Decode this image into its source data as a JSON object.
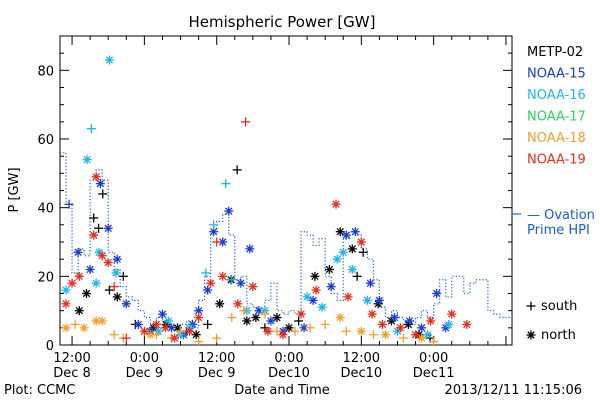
{
  "chart_data": {
    "type": "scatter",
    "title": "Hemispheric Power [GW]",
    "ylabel": "P [GW]",
    "xlabel": "Date and Time",
    "ylim": [
      0,
      90
    ],
    "xlim_hours": [
      10,
      85
    ],
    "yticks": [
      0,
      20,
      40,
      60,
      80
    ],
    "xticks": [
      {
        "x": 12,
        "top": "12:00",
        "bottom": "Dec 8"
      },
      {
        "x": 24,
        "top": "0:00",
        "bottom": "Dec 9"
      },
      {
        "x": 36,
        "top": "12:00",
        "bottom": "Dec 9"
      },
      {
        "x": 48,
        "top": "0:00",
        "bottom": "Dec10"
      },
      {
        "x": 60,
        "top": "12:00",
        "bottom": "Dec10"
      },
      {
        "x": 72,
        "top": "0:00",
        "bottom": "Dec11"
      }
    ],
    "legend": [
      {
        "name": "METP-02",
        "color": "#000000"
      },
      {
        "name": "NOAA-15",
        "color": "#1a3ccc"
      },
      {
        "name": "NOAA-16",
        "color": "#22b4e8"
      },
      {
        "name": "NOAA-17",
        "color": "#33cc66"
      },
      {
        "name": "NOAA-18",
        "color": "#f0a030"
      },
      {
        "name": "NOAA-19",
        "color": "#e03020"
      }
    ],
    "ovation_label": [
      "— Ovation",
      "Prime HPI"
    ],
    "ovation_color": "#1a5ccc",
    "marker_legend": [
      {
        "symbol": "+",
        "label": "south"
      },
      {
        "symbol": "*",
        "label": "north"
      }
    ],
    "ovation_hpi": [
      [
        10,
        56
      ],
      [
        11,
        41
      ],
      [
        12,
        21
      ],
      [
        13,
        28
      ],
      [
        14,
        26
      ],
      [
        15,
        48
      ],
      [
        16,
        51
      ],
      [
        17,
        48
      ],
      [
        18,
        27
      ],
      [
        19,
        22
      ],
      [
        20,
        17
      ],
      [
        21,
        14
      ],
      [
        22,
        13
      ],
      [
        23,
        10
      ],
      [
        24,
        8
      ],
      [
        25,
        6
      ],
      [
        26,
        8
      ],
      [
        27,
        7
      ],
      [
        28,
        6
      ],
      [
        29,
        4
      ],
      [
        30,
        6
      ],
      [
        31,
        7
      ],
      [
        32,
        5
      ],
      [
        33,
        13
      ],
      [
        34,
        20
      ],
      [
        35,
        33
      ],
      [
        36,
        36
      ],
      [
        37,
        38
      ],
      [
        38,
        32
      ],
      [
        39,
        19
      ],
      [
        40,
        20
      ],
      [
        41,
        12
      ],
      [
        42,
        11
      ],
      [
        43,
        10
      ],
      [
        44,
        13
      ],
      [
        45,
        18
      ],
      [
        46,
        10
      ],
      [
        47,
        9
      ],
      [
        48,
        10
      ],
      [
        49,
        9
      ],
      [
        50,
        33
      ],
      [
        51,
        32
      ],
      [
        52,
        29
      ],
      [
        53,
        31
      ],
      [
        54,
        20
      ],
      [
        55,
        15
      ],
      [
        56,
        13
      ],
      [
        57,
        31
      ],
      [
        58,
        33
      ],
      [
        59,
        32
      ],
      [
        60,
        28
      ],
      [
        61,
        25
      ],
      [
        62,
        19
      ],
      [
        63,
        11
      ],
      [
        64,
        8
      ],
      [
        65,
        10
      ],
      [
        66,
        8
      ],
      [
        67,
        7
      ],
      [
        68,
        6
      ],
      [
        69,
        8
      ],
      [
        70,
        10
      ],
      [
        71,
        8
      ],
      [
        72,
        12
      ],
      [
        73,
        19
      ],
      [
        74,
        14
      ],
      [
        75,
        20
      ],
      [
        76,
        20
      ],
      [
        77,
        15
      ],
      [
        78,
        18
      ],
      [
        79,
        19
      ],
      [
        80,
        19
      ],
      [
        81,
        10
      ],
      [
        82,
        9
      ],
      [
        83,
        8
      ],
      [
        85,
        8
      ]
    ],
    "series": [
      {
        "name": "METP-02",
        "color": "#000000",
        "points": [
          {
            "x": 13.2,
            "y": 10,
            "m": "*"
          },
          {
            "x": 14.4,
            "y": 15,
            "m": "*"
          },
          {
            "x": 15.6,
            "y": 37,
            "m": "+"
          },
          {
            "x": 16.4,
            "y": 34,
            "m": "+"
          },
          {
            "x": 17.1,
            "y": 44,
            "m": "+"
          },
          {
            "x": 18.2,
            "y": 16,
            "m": "+"
          },
          {
            "x": 19.5,
            "y": 14,
            "m": "*"
          },
          {
            "x": 20.5,
            "y": 20,
            "m": "+"
          },
          {
            "x": 22.5,
            "y": 6,
            "m": "+"
          },
          {
            "x": 25.5,
            "y": 5,
            "m": "*"
          },
          {
            "x": 27.6,
            "y": 6,
            "m": "*"
          },
          {
            "x": 29.5,
            "y": 5,
            "m": "*"
          },
          {
            "x": 31.0,
            "y": 4,
            "m": "+"
          },
          {
            "x": 32.6,
            "y": 3,
            "m": "*"
          },
          {
            "x": 34.5,
            "y": 6,
            "m": "+"
          },
          {
            "x": 36.5,
            "y": 12,
            "m": "*"
          },
          {
            "x": 38.4,
            "y": 19,
            "m": "*"
          },
          {
            "x": 39.4,
            "y": 51,
            "m": "+"
          },
          {
            "x": 41.0,
            "y": 7,
            "m": "*"
          },
          {
            "x": 42.5,
            "y": 8,
            "m": "*"
          },
          {
            "x": 44.0,
            "y": 5,
            "m": "+"
          },
          {
            "x": 46.0,
            "y": 8,
            "m": "*"
          },
          {
            "x": 48.0,
            "y": 5,
            "m": "*"
          },
          {
            "x": 49.6,
            "y": 7,
            "m": "+"
          },
          {
            "x": 52.3,
            "y": 20,
            "m": "*"
          },
          {
            "x": 54.7,
            "y": 22,
            "m": "*"
          },
          {
            "x": 56.5,
            "y": 33,
            "m": "*"
          },
          {
            "x": 58.5,
            "y": 28,
            "m": "*"
          },
          {
            "x": 60.3,
            "y": 27,
            "m": "+"
          },
          {
            "x": 59.3,
            "y": 20,
            "m": "+"
          },
          {
            "x": 62.8,
            "y": 12,
            "m": "*"
          },
          {
            "x": 65.0,
            "y": 7,
            "m": "*"
          },
          {
            "x": 67.8,
            "y": 6,
            "m": "*"
          },
          {
            "x": 69.6,
            "y": 3,
            "m": "*"
          },
          {
            "x": 71.4,
            "y": 2,
            "m": "+"
          }
        ]
      },
      {
        "name": "NOAA-15",
        "color": "#1a3ccc",
        "points": [
          {
            "x": 11.5,
            "y": 41,
            "m": "+"
          },
          {
            "x": 13.0,
            "y": 27,
            "m": "*"
          },
          {
            "x": 15.0,
            "y": 22,
            "m": "*"
          },
          {
            "x": 16.7,
            "y": 47,
            "m": "*"
          },
          {
            "x": 18.0,
            "y": 34,
            "m": "*"
          },
          {
            "x": 19.5,
            "y": 25,
            "m": "*"
          },
          {
            "x": 21.0,
            "y": 12,
            "m": "*"
          },
          {
            "x": 23.0,
            "y": 6,
            "m": "*"
          },
          {
            "x": 25.0,
            "y": 4,
            "m": "*"
          },
          {
            "x": 27.0,
            "y": 9,
            "m": "*"
          },
          {
            "x": 28.5,
            "y": 5,
            "m": "*"
          },
          {
            "x": 30.5,
            "y": 3,
            "m": "*"
          },
          {
            "x": 32.0,
            "y": 6,
            "m": "*"
          },
          {
            "x": 33.0,
            "y": 10,
            "m": "*"
          },
          {
            "x": 34.5,
            "y": 16,
            "m": "*"
          },
          {
            "x": 35.5,
            "y": 33,
            "m": "*"
          },
          {
            "x": 37.0,
            "y": 30,
            "m": "*"
          },
          {
            "x": 38.0,
            "y": 39,
            "m": "*"
          },
          {
            "x": 40.0,
            "y": 18,
            "m": "*"
          },
          {
            "x": 41.5,
            "y": 28,
            "m": "*"
          },
          {
            "x": 43.0,
            "y": 10,
            "m": "*"
          },
          {
            "x": 45.0,
            "y": 7,
            "m": "*"
          },
          {
            "x": 47.0,
            "y": 4,
            "m": "*"
          },
          {
            "x": 50.5,
            "y": 5,
            "m": "*"
          },
          {
            "x": 52.0,
            "y": 13,
            "m": "*"
          },
          {
            "x": 55.0,
            "y": 17,
            "m": "*"
          },
          {
            "x": 57.5,
            "y": 32,
            "m": "*"
          },
          {
            "x": 59.0,
            "y": 33,
            "m": "*"
          },
          {
            "x": 61.5,
            "y": 18,
            "m": "*"
          },
          {
            "x": 63.0,
            "y": 13,
            "m": "*"
          },
          {
            "x": 65.5,
            "y": 8,
            "m": "*"
          },
          {
            "x": 68.0,
            "y": 7,
            "m": "*"
          },
          {
            "x": 70.0,
            "y": 5,
            "m": "*"
          },
          {
            "x": 72.5,
            "y": 15,
            "m": "*"
          },
          {
            "x": 74.0,
            "y": 5,
            "m": "*"
          }
        ]
      },
      {
        "name": "NOAA-16",
        "color": "#22b4e8",
        "points": [
          {
            "x": 11.0,
            "y": 16,
            "m": "*"
          },
          {
            "x": 14.5,
            "y": 54,
            "m": "*"
          },
          {
            "x": 15.2,
            "y": 63,
            "m": "+"
          },
          {
            "x": 16.0,
            "y": 18,
            "m": "*"
          },
          {
            "x": 16.5,
            "y": 27,
            "m": "*"
          },
          {
            "x": 18.2,
            "y": 83,
            "m": "*"
          },
          {
            "x": 19.3,
            "y": 21,
            "m": "*"
          },
          {
            "x": 26.3,
            "y": 4,
            "m": "*"
          },
          {
            "x": 28.0,
            "y": 7,
            "m": "*"
          },
          {
            "x": 30.0,
            "y": 3,
            "m": "*"
          },
          {
            "x": 31.5,
            "y": 5,
            "m": "*"
          },
          {
            "x": 34.2,
            "y": 21,
            "m": "+"
          },
          {
            "x": 35.5,
            "y": 35,
            "m": "+"
          },
          {
            "x": 37.5,
            "y": 47,
            "m": "+"
          },
          {
            "x": 38.5,
            "y": 19,
            "m": "+"
          },
          {
            "x": 41.0,
            "y": 10,
            "m": "*"
          },
          {
            "x": 44.0,
            "y": 10,
            "m": "*"
          },
          {
            "x": 51.0,
            "y": 14,
            "m": "*"
          },
          {
            "x": 53.5,
            "y": 11,
            "m": "*"
          },
          {
            "x": 56.0,
            "y": 25,
            "m": "*"
          },
          {
            "x": 57.0,
            "y": 27,
            "m": "*"
          },
          {
            "x": 58.5,
            "y": 22,
            "m": "*"
          },
          {
            "x": 61.0,
            "y": 13,
            "m": "*"
          },
          {
            "x": 66.0,
            "y": 4,
            "m": "*"
          },
          {
            "x": 71.0,
            "y": 3,
            "m": "*"
          },
          {
            "x": 74.5,
            "y": 6,
            "m": "*"
          }
        ]
      },
      {
        "name": "NOAA-17",
        "color": "#33cc66",
        "points": []
      },
      {
        "name": "NOAA-18",
        "color": "#f0a030",
        "points": [
          {
            "x": 11.0,
            "y": 5,
            "m": "*"
          },
          {
            "x": 12.5,
            "y": 6,
            "m": "+"
          },
          {
            "x": 14.0,
            "y": 5,
            "m": "*"
          },
          {
            "x": 16.0,
            "y": 7,
            "m": "*"
          },
          {
            "x": 17.0,
            "y": 7,
            "m": "*"
          },
          {
            "x": 19.0,
            "y": 3,
            "m": "+"
          },
          {
            "x": 20.5,
            "y": 2,
            "m": "+"
          },
          {
            "x": 25.0,
            "y": 3,
            "m": "*"
          },
          {
            "x": 26.0,
            "y": 3,
            "m": "+"
          },
          {
            "x": 28.5,
            "y": 2,
            "m": "+"
          },
          {
            "x": 30.0,
            "y": 4,
            "m": "+"
          },
          {
            "x": 33.0,
            "y": 1,
            "m": "+"
          },
          {
            "x": 36.0,
            "y": 2,
            "m": "+"
          },
          {
            "x": 38.5,
            "y": 8,
            "m": "+"
          },
          {
            "x": 40.5,
            "y": 10,
            "m": "+"
          },
          {
            "x": 44.0,
            "y": 9,
            "m": "+"
          },
          {
            "x": 46.0,
            "y": 4,
            "m": "+"
          },
          {
            "x": 49.0,
            "y": 4,
            "m": "+"
          },
          {
            "x": 51.5,
            "y": 5,
            "m": "+"
          },
          {
            "x": 54.0,
            "y": 6,
            "m": "+"
          },
          {
            "x": 56.5,
            "y": 8,
            "m": "*"
          },
          {
            "x": 57.5,
            "y": 4,
            "m": "+"
          },
          {
            "x": 60.0,
            "y": 4,
            "m": "*"
          },
          {
            "x": 62.0,
            "y": 3,
            "m": "+"
          },
          {
            "x": 64.0,
            "y": 3,
            "m": "*"
          },
          {
            "x": 67.0,
            "y": 2,
            "m": "+"
          },
          {
            "x": 70.0,
            "y": 2,
            "m": "*"
          },
          {
            "x": 72.0,
            "y": 1,
            "m": "+"
          }
        ]
      },
      {
        "name": "NOAA-19",
        "color": "#e03020",
        "points": [
          {
            "x": 11.0,
            "y": 12,
            "m": "*"
          },
          {
            "x": 12.0,
            "y": 18,
            "m": "*"
          },
          {
            "x": 13.2,
            "y": 20,
            "m": "*"
          },
          {
            "x": 15.6,
            "y": 32,
            "m": "*"
          },
          {
            "x": 16.0,
            "y": 49,
            "m": "*"
          },
          {
            "x": 17.0,
            "y": 26,
            "m": "*"
          },
          {
            "x": 18.0,
            "y": 24,
            "m": "*"
          },
          {
            "x": 19.0,
            "y": 17,
            "m": "+"
          },
          {
            "x": 21.0,
            "y": 2,
            "m": "+"
          },
          {
            "x": 24.0,
            "y": 4,
            "m": "*"
          },
          {
            "x": 26.0,
            "y": 6,
            "m": "*"
          },
          {
            "x": 27.5,
            "y": 5,
            "m": "*"
          },
          {
            "x": 29.0,
            "y": 2,
            "m": "*"
          },
          {
            "x": 31.5,
            "y": 4,
            "m": "*"
          },
          {
            "x": 33.0,
            "y": 8,
            "m": "*"
          },
          {
            "x": 35.0,
            "y": 18,
            "m": "*"
          },
          {
            "x": 36.0,
            "y": 30,
            "m": "+"
          },
          {
            "x": 37.0,
            "y": 20,
            "m": "*"
          },
          {
            "x": 39.5,
            "y": 12,
            "m": "*"
          },
          {
            "x": 40.8,
            "y": 65,
            "m": "+"
          },
          {
            "x": 42.0,
            "y": 17,
            "m": "*"
          },
          {
            "x": 44.5,
            "y": 4,
            "m": "*"
          },
          {
            "x": 47.0,
            "y": 3,
            "m": "*"
          },
          {
            "x": 50.0,
            "y": 9,
            "m": "*"
          },
          {
            "x": 52.5,
            "y": 16,
            "m": "*"
          },
          {
            "x": 55.8,
            "y": 41,
            "m": "*"
          },
          {
            "x": 57.8,
            "y": 14,
            "m": "*"
          },
          {
            "x": 60.0,
            "y": 30,
            "m": "*"
          },
          {
            "x": 61.8,
            "y": 9,
            "m": "*"
          },
          {
            "x": 63.5,
            "y": 6,
            "m": "*"
          },
          {
            "x": 66.5,
            "y": 5,
            "m": "*"
          },
          {
            "x": 69.0,
            "y": 3,
            "m": "*"
          },
          {
            "x": 71.5,
            "y": 7,
            "m": "*"
          },
          {
            "x": 75.0,
            "y": 9,
            "m": "*"
          },
          {
            "x": 77.5,
            "y": 6,
            "m": "*"
          }
        ]
      }
    ]
  },
  "footer": {
    "left": "Plot: CCMC",
    "right": "2013/12/11 11:15:06"
  }
}
